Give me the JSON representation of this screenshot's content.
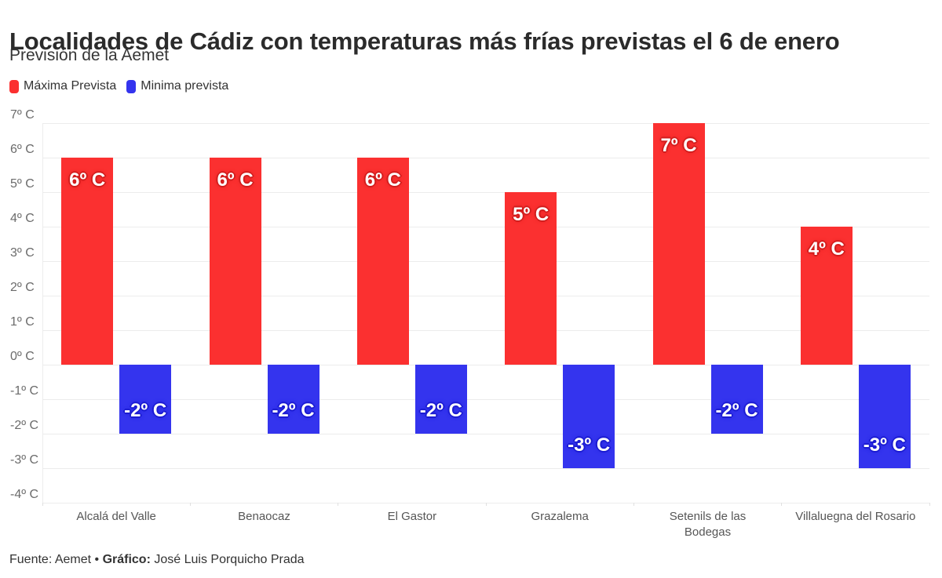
{
  "header": {
    "title": "Localidades de Cádiz con temperaturas más frías previstas el 6 de enero",
    "subtitle": "Previsión de la Aemet"
  },
  "legend": {
    "items": [
      {
        "label": "Máxima Prevista",
        "color": "#fb3030"
      },
      {
        "label": "Minima prevista",
        "color": "#3434ee"
      }
    ]
  },
  "chart_data": {
    "type": "bar",
    "title": "Localidades de Cádiz con temperaturas más frías previstas el 6 de enero",
    "subtitle": "Previsión de la Aemet",
    "categories": [
      "Alcalá del Valle",
      "Benaocaz",
      "El Gastor",
      "Grazalema",
      "Setenils de las\nBodegas",
      "Villaluegna del Rosario"
    ],
    "series": [
      {
        "name": "Máxima Prevista",
        "color": "#fb3030",
        "values": [
          6,
          6,
          6,
          5,
          7,
          4
        ],
        "labels": [
          "6º C",
          "6º C",
          "6º C",
          "5º C",
          "7º C",
          "4º C"
        ]
      },
      {
        "name": "Minima prevista",
        "color": "#3434ee",
        "values": [
          -2,
          -2,
          -2,
          -3,
          -2,
          -3
        ],
        "labels": [
          "-2º C",
          "-2º C",
          "-2º C",
          "-3º C",
          "-2º C",
          "-3º C"
        ]
      }
    ],
    "y_ticks": [
      "7º C",
      "6º C",
      "5º C",
      "4º C",
      "3º C",
      "2º C",
      "1º C",
      "0º C",
      "-1º C",
      "-2º C",
      "-3º C",
      "-4º C"
    ],
    "ylim": [
      -4,
      7
    ],
    "y_step": 1,
    "grid": "horizontal",
    "legend_position": "top-left",
    "unit": "º C"
  },
  "footer": {
    "prefix": "Fuente: Aemet • ",
    "credit_label": "Gráfico:",
    "credit": " José Luis Porquicho Prada"
  }
}
